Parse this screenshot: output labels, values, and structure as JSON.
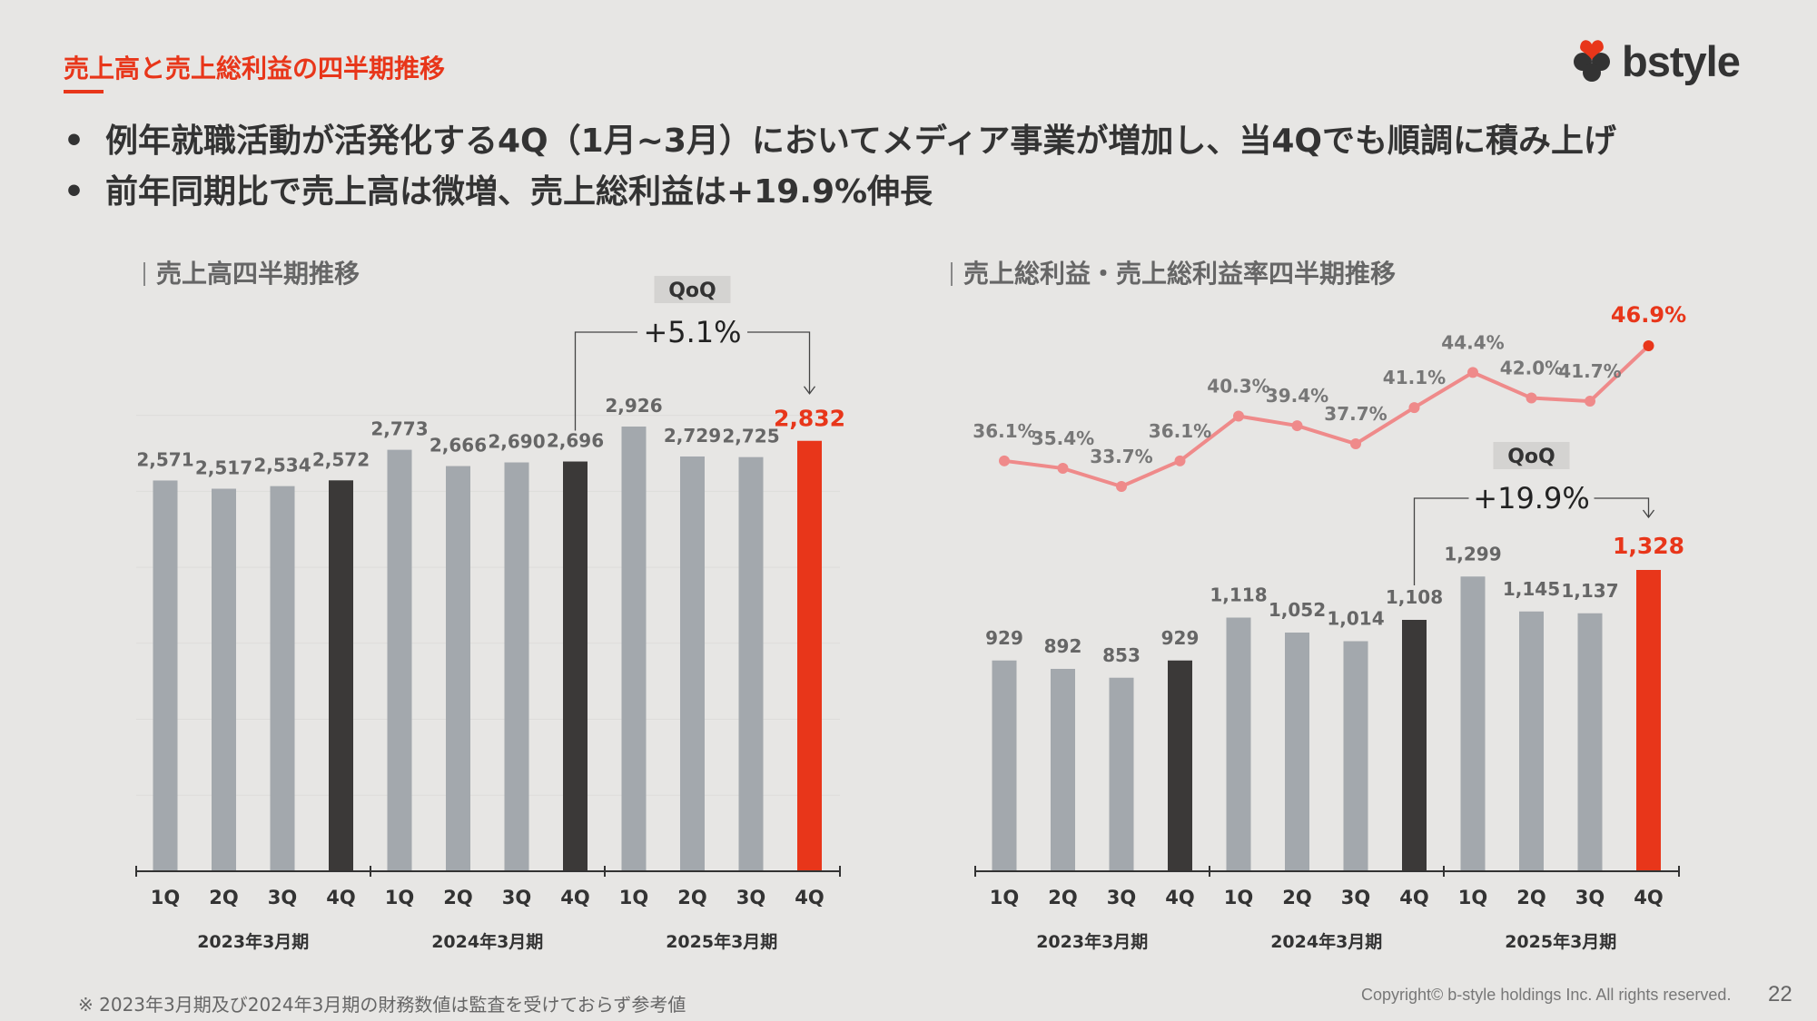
{
  "page_title": "売上高と売上総利益の四半期推移",
  "logo_text": "bstyle",
  "bullets": [
    "例年就職活動が活発化する4Q（1月~3月）においてメディア事業が増加し、当4Qでも順調に積み上げ",
    "前年同期比で売上高は微増、売上総利益は+19.9%伸長"
  ],
  "colors": {
    "accent": "#e8361a",
    "bar_gray": "#a3a8ad",
    "bar_dark": "#3b3938",
    "line_pink": "#ef8a8a",
    "background": "#e7e6e4"
  },
  "chart_data": [
    {
      "type": "bar",
      "title": "売上高四半期推移",
      "categories": [
        "1Q",
        "2Q",
        "3Q",
        "4Q",
        "1Q",
        "2Q",
        "3Q",
        "4Q",
        "1Q",
        "2Q",
        "3Q",
        "4Q"
      ],
      "groups": [
        "2023年3月期",
        "2024年3月期",
        "2025年3月期"
      ],
      "values": [
        2571,
        2517,
        2534,
        2572,
        2773,
        2666,
        2690,
        2696,
        2926,
        2729,
        2725,
        2832
      ],
      "labels": [
        "2,571",
        "2,517",
        "2,534",
        "2,572",
        "2,773",
        "2,666",
        "2,690",
        "2,696",
        "2,926",
        "2,729",
        "2,725",
        "2,832"
      ],
      "ylim": [
        0,
        3500
      ],
      "grid": true,
      "annotation": {
        "title": "QoQ",
        "value": "+5.1%",
        "from_index": 7,
        "to_index": 11
      }
    },
    {
      "type": "bar+line",
      "title": "売上総利益・売上総利益率四半期推移",
      "categories": [
        "1Q",
        "2Q",
        "3Q",
        "4Q",
        "1Q",
        "2Q",
        "3Q",
        "4Q",
        "1Q",
        "2Q",
        "3Q",
        "4Q"
      ],
      "groups": [
        "2023年3月期",
        "2024年3月期",
        "2025年3月期"
      ],
      "bar_values": [
        929,
        892,
        853,
        929,
        1118,
        1052,
        1014,
        1108,
        1299,
        1145,
        1137,
        1328
      ],
      "bar_labels": [
        "929",
        "892",
        "853",
        "929",
        "1,118",
        "1,052",
        "1,014",
        "1,108",
        "1,299",
        "1,145",
        "1,137",
        "1,328"
      ],
      "line_values": [
        36.1,
        35.4,
        33.7,
        36.1,
        40.3,
        39.4,
        37.7,
        41.1,
        44.4,
        42.0,
        41.7,
        46.9
      ],
      "line_labels": [
        "36.1%",
        "35.4%",
        "33.7%",
        "36.1%",
        "40.3%",
        "39.4%",
        "37.7%",
        "41.1%",
        "44.4%",
        "42.0%",
        "41.7%",
        "46.9%"
      ],
      "annotation": {
        "title": "QoQ",
        "value": "+19.9%",
        "from_index": 7,
        "to_index": 11
      }
    }
  ],
  "footnote": "※ 2023年3月期及び2024年3月期の財務数値は監査を受けておらず参考値",
  "copyright": "Copyright© b-style holdings Inc. All rights reserved.",
  "page_number": "22"
}
